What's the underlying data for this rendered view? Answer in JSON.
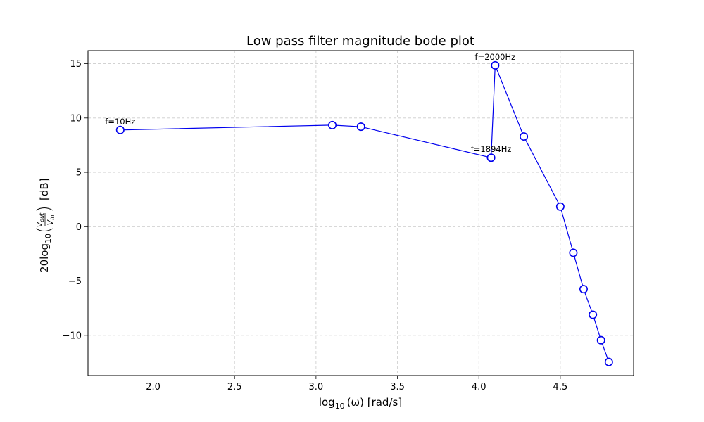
{
  "chart_data": {
    "type": "line",
    "title": "Low pass filter magnitude bode plot",
    "xlabel": {
      "prefix": "log",
      "sub": "10",
      "suffix": "(ω) [rad/s]"
    },
    "ylabel": {
      "prefix": "20log",
      "sub": "10",
      "num": "V",
      "num_sub": "out",
      "den": "V",
      "den_sub": "in",
      "unit": "[dB]"
    },
    "xlim": [
      1.6,
      4.95
    ],
    "ylim": [
      -13.7,
      16.2
    ],
    "x_ticks": [
      2.0,
      2.5,
      3.0,
      3.5,
      4.0,
      4.5
    ],
    "x_tick_labels": [
      "2.0",
      "2.5",
      "3.0",
      "3.5",
      "4.0",
      "4.5"
    ],
    "y_ticks": [
      -10,
      -5,
      0,
      5,
      10,
      15
    ],
    "y_tick_labels": [
      "−10",
      "−5",
      "0",
      "5",
      "10",
      "15"
    ],
    "grid": true,
    "line_color": "#0000ee",
    "series": [
      {
        "x": [
          1.798,
          3.1,
          3.276,
          4.075,
          4.1,
          4.276,
          4.5,
          4.58,
          4.643,
          4.7,
          4.75,
          4.798
        ],
        "y": [
          8.9,
          9.35,
          9.2,
          6.35,
          14.85,
          8.3,
          1.85,
          -2.4,
          -5.75,
          -8.1,
          -10.45,
          -12.45
        ]
      }
    ],
    "annotations": [
      {
        "text": "f=10Hz",
        "x": 1.798,
        "y": 8.9
      },
      {
        "text": "f=1894Hz",
        "x": 4.075,
        "y": 6.35
      },
      {
        "text": "f=2000Hz",
        "x": 4.1,
        "y": 14.85
      }
    ]
  }
}
